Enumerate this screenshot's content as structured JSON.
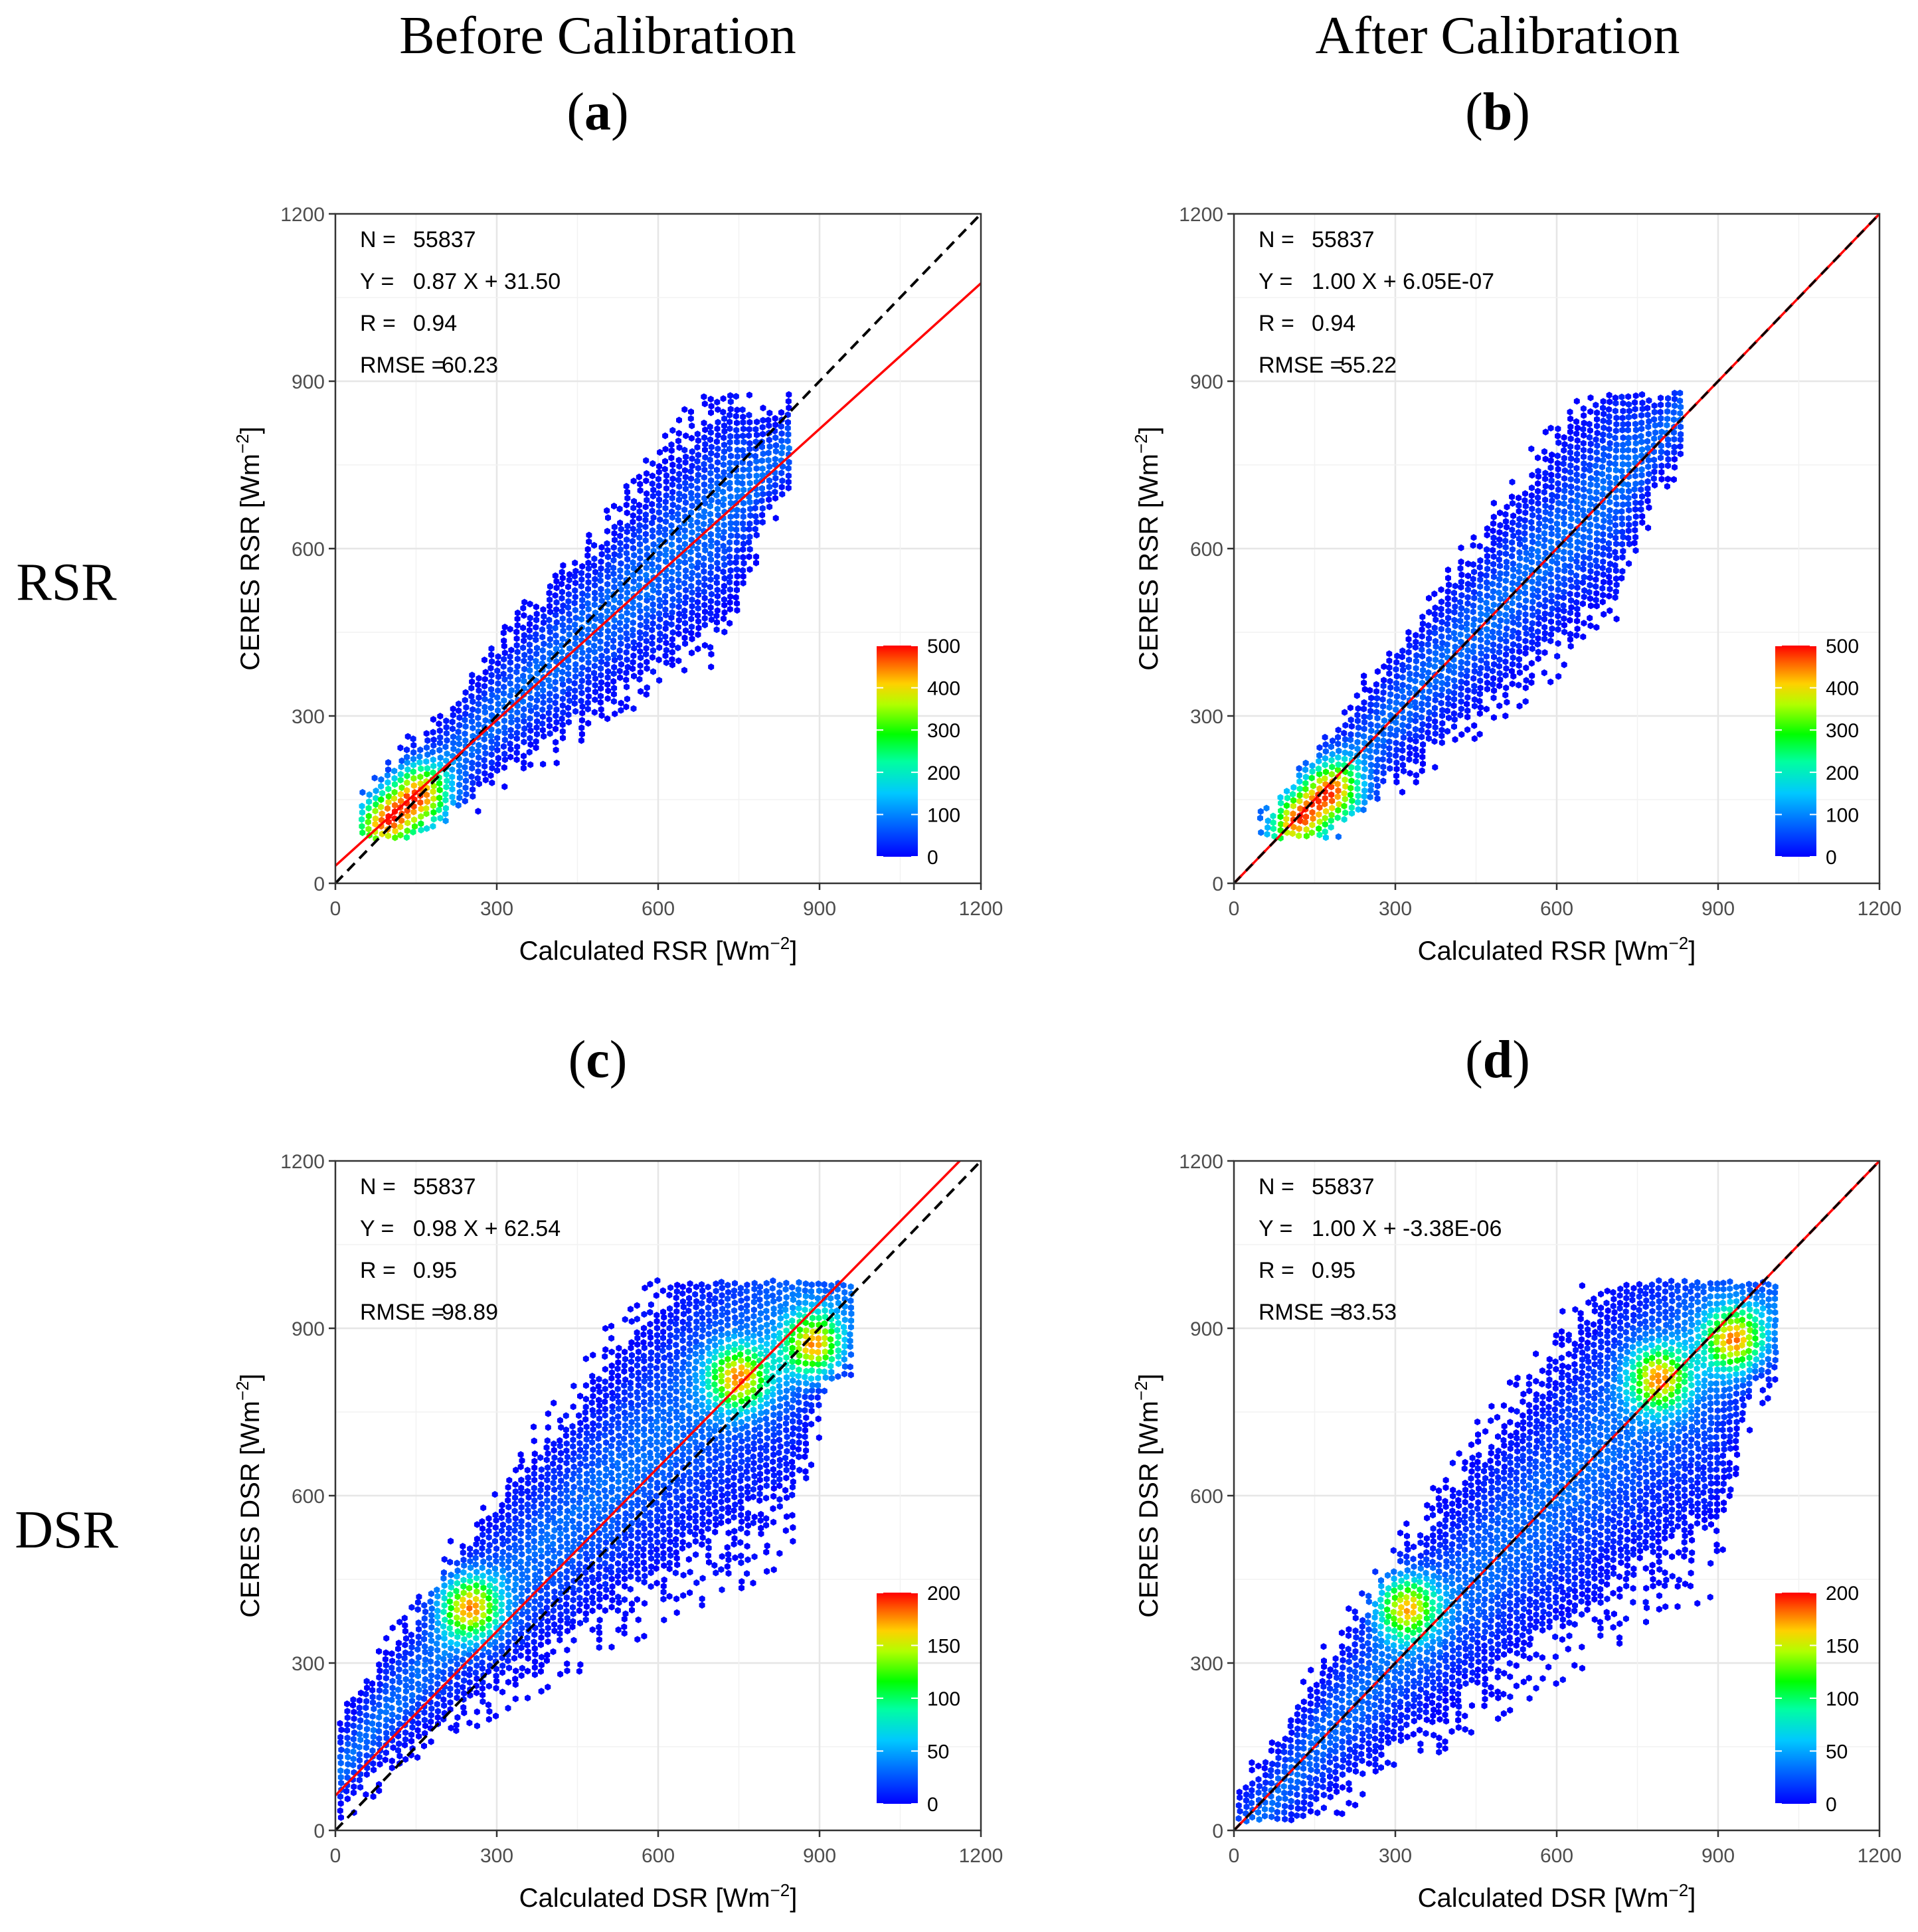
{
  "figure": {
    "col_headers": [
      "Before Calibration",
      "After Calibration"
    ],
    "row_labels": [
      "RSR",
      "DSR"
    ]
  },
  "chart_data": [
    {
      "type": "scatter",
      "subtype": "hexbin-density",
      "panel_label": "a",
      "variable": "RSR",
      "xlabel": "Calculated RSR [Wm",
      "ylabel": "CERES RSR [Wm",
      "unit_exponent": "−2",
      "xlim": [
        0,
        1200
      ],
      "ylim": [
        0,
        1200
      ],
      "xticks": [
        "0",
        "300",
        "600",
        "900",
        "1200"
      ],
      "yticks": [
        "0",
        "300",
        "600",
        "900",
        "1200"
      ],
      "grid": true,
      "stats_labels": [
        "N =",
        "Y =",
        "R =",
        "RMSE ="
      ],
      "stats_values": [
        "55837",
        "0.87 X + 31.50",
        "0.94",
        "60.23"
      ],
      "regression": {
        "slope": 0.87,
        "intercept": 31.5,
        "color": "#ff0000"
      },
      "identity_line": {
        "color": "#000000",
        "dash": true
      },
      "colorbar": {
        "ticks": [
          "0",
          "100",
          "200",
          "300",
          "400",
          "500"
        ],
        "max": 500,
        "position": "bottom-right"
      },
      "ridge": {
        "x": [
          60,
          150,
          200,
          300,
          450,
          600,
          750,
          820
        ],
        "center_offset": [
          10,
          15,
          0,
          10,
          10,
          10,
          15,
          15
        ]
      },
      "hotspots": [
        {
          "x": 160,
          "y": 155
        },
        {
          "x": 95,
          "y": 105
        }
      ]
    },
    {
      "type": "scatter",
      "subtype": "hexbin-density",
      "panel_label": "b",
      "variable": "RSR",
      "xlabel": "Calculated RSR [Wm",
      "ylabel": "CERES RSR [Wm",
      "unit_exponent": "−2",
      "xlim": [
        0,
        1200
      ],
      "ylim": [
        0,
        1200
      ],
      "xticks": [
        "0",
        "300",
        "600",
        "900",
        "1200"
      ],
      "yticks": [
        "0",
        "300",
        "600",
        "900",
        "1200"
      ],
      "grid": true,
      "stats_labels": [
        "N =",
        "Y =",
        "R =",
        "RMSE ="
      ],
      "stats_values": [
        "55837",
        "1.00 X + 6.05E-07",
        "0.94",
        "55.22"
      ],
      "regression": {
        "slope": 1.0,
        "intercept": 0.0,
        "color": "#ff0000"
      },
      "identity_line": {
        "color": "#000000",
        "dash": true
      },
      "colorbar": {
        "ticks": [
          "0",
          "100",
          "200",
          "300",
          "400",
          "500"
        ],
        "max": 500,
        "position": "bottom-right"
      },
      "ridge": {
        "x": [
          70,
          140,
          200,
          300,
          450,
          600,
          720,
          800
        ],
        "center_offset": [
          0,
          5,
          -5,
          5,
          5,
          5,
          10,
          10
        ]
      },
      "hotspots": [
        {
          "x": 185,
          "y": 165
        },
        {
          "x": 120,
          "y": 110
        }
      ]
    },
    {
      "type": "scatter",
      "subtype": "hexbin-density",
      "panel_label": "c",
      "variable": "DSR",
      "xlabel": "Calculated DSR [Wm",
      "ylabel": "CERES DSR [Wm",
      "unit_exponent": "−2",
      "xlim": [
        0,
        1200
      ],
      "ylim": [
        0,
        1200
      ],
      "xticks": [
        "0",
        "300",
        "600",
        "900",
        "1200"
      ],
      "yticks": [
        "0",
        "300",
        "600",
        "900",
        "1200"
      ],
      "grid": true,
      "stats_labels": [
        "N =",
        "Y =",
        "R =",
        "RMSE ="
      ],
      "stats_values": [
        "55837",
        "0.98 X + 62.54",
        "0.95",
        "98.89"
      ],
      "regression": {
        "slope": 0.98,
        "intercept": 62.54,
        "color": "#ff0000"
      },
      "identity_line": {
        "color": "#000000",
        "dash": true
      },
      "colorbar": {
        "ticks": [
          "0",
          "50",
          "100",
          "150",
          "200"
        ],
        "max": 200,
        "position": "bottom-right"
      },
      "ridge": {
        "x": [
          10,
          100,
          250,
          400,
          550,
          700,
          850,
          940
        ],
        "center_offset": [
          40,
          60,
          70,
          60,
          50,
          40,
          10,
          -40
        ]
      },
      "hotspots": [
        {
          "x": 890,
          "y": 870
        },
        {
          "x": 750,
          "y": 810
        },
        {
          "x": 250,
          "y": 400
        }
      ]
    },
    {
      "type": "scatter",
      "subtype": "hexbin-density",
      "panel_label": "d",
      "variable": "DSR",
      "xlabel": "Calculated DSR [Wm",
      "ylabel": "CERES DSR [Wm",
      "unit_exponent": "−2",
      "xlim": [
        0,
        1200
      ],
      "ylim": [
        0,
        1200
      ],
      "xticks": [
        "0",
        "300",
        "600",
        "900",
        "1200"
      ],
      "yticks": [
        "0",
        "300",
        "600",
        "900",
        "1200"
      ],
      "grid": true,
      "stats_labels": [
        "N =",
        "Y =",
        "R =",
        "RMSE ="
      ],
      "stats_values": [
        "55837",
        "1.00 X + -3.38E-06",
        "0.95",
        "83.53"
      ],
      "regression": {
        "slope": 1.0,
        "intercept": 0.0,
        "color": "#ff0000"
      },
      "identity_line": {
        "color": "#000000",
        "dash": true
      },
      "colorbar": {
        "ticks": [
          "0",
          "50",
          "100",
          "150",
          "200"
        ],
        "max": 200,
        "position": "bottom-right"
      },
      "ridge": {
        "x": [
          60,
          150,
          300,
          450,
          600,
          750,
          900,
          990
        ],
        "center_offset": [
          -20,
          0,
          10,
          5,
          0,
          0,
          -20,
          -60
        ]
      },
      "hotspots": [
        {
          "x": 930,
          "y": 880
        },
        {
          "x": 790,
          "y": 810
        },
        {
          "x": 320,
          "y": 400
        }
      ]
    }
  ]
}
